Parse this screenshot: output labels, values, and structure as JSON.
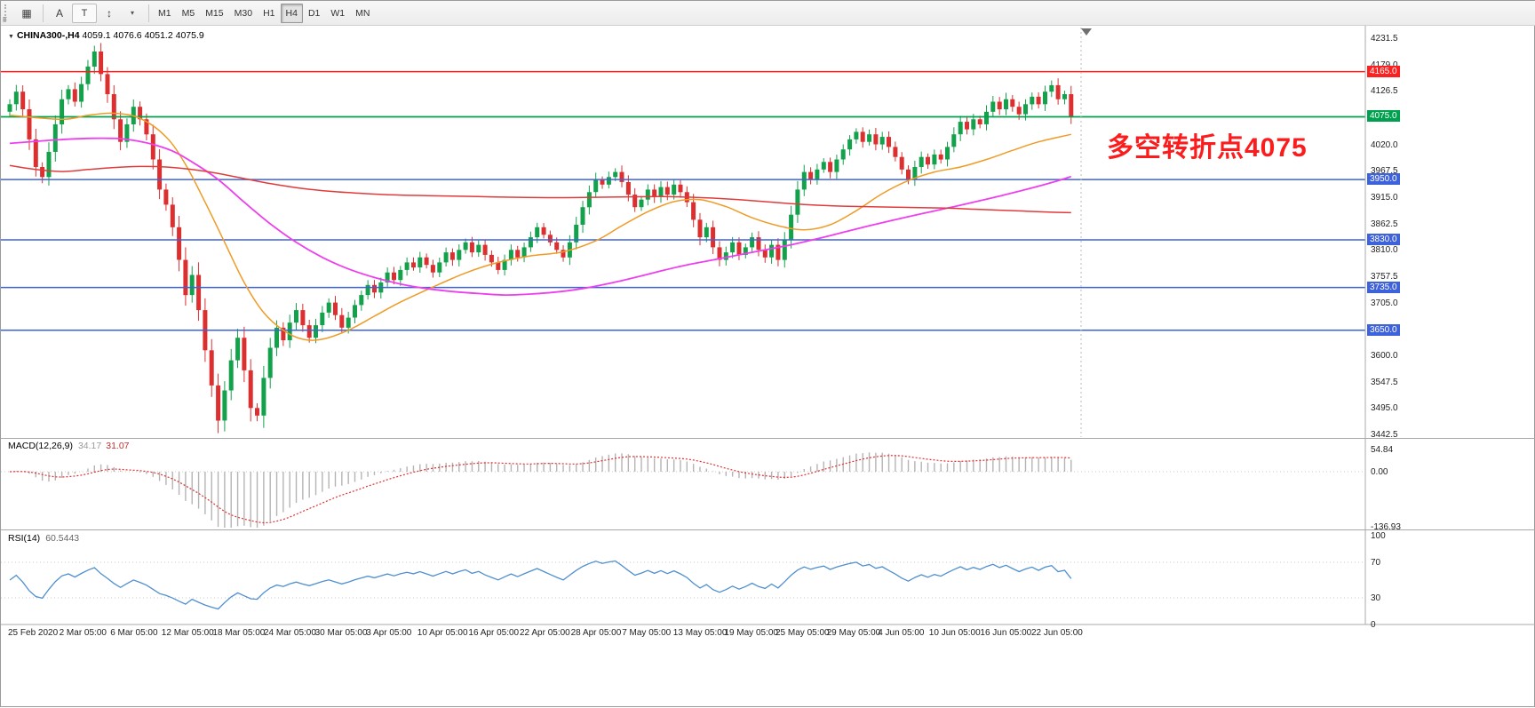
{
  "colors": {
    "up": "#14a14b",
    "down": "#dc2f2f",
    "ma_fast": "#ef9b25",
    "ma_mid": "#ee3fee",
    "ma_slow": "#e03b3b",
    "macd_hist": "#b4b4b4",
    "macd_signal": "#e03030",
    "rsi_line": "#4f8fd0",
    "annotation": "#fb1d1d"
  },
  "toolbar": {
    "f_label": "F",
    "caret": "▾",
    "icons": [
      {
        "name": "charts-grid",
        "glyph": "▦"
      },
      {
        "name": "cursor-a",
        "glyph": "A"
      },
      {
        "name": "text-tool",
        "glyph": "T"
      },
      {
        "name": "crosshair",
        "glyph": "↕"
      }
    ],
    "timeframes": [
      {
        "label": "M1",
        "active": false
      },
      {
        "label": "M5",
        "active": false
      },
      {
        "label": "M15",
        "active": false
      },
      {
        "label": "M30",
        "active": false
      },
      {
        "label": "H1",
        "active": false
      },
      {
        "label": "H4",
        "active": true
      },
      {
        "label": "D1",
        "active": false
      },
      {
        "label": "W1",
        "active": false
      },
      {
        "label": "MN",
        "active": false
      }
    ]
  },
  "chart": {
    "caret": "▼",
    "title": "CHINA300-,H4",
    "annotation": {
      "text": "多空转折点4075"
    }
  },
  "chart_data": {
    "type": "candlestick",
    "symbol": "CHINA300-",
    "period": "H4",
    "ohlc_current": {
      "open": "4059.1",
      "high": "4076.6",
      "low": "4051.2",
      "close": "4075.9"
    },
    "price_range": {
      "min": 3442.5,
      "max": 4231.5
    },
    "y_ticks": [
      4231.5,
      4179.0,
      4126.5,
      4020.0,
      3967.5,
      3915.0,
      3862.5,
      3810.0,
      3757.5,
      3705.0,
      3600.0,
      3547.5,
      3495.0,
      3442.5
    ],
    "levels": [
      {
        "price": 4165.0,
        "color": "#fd2020",
        "kind": "resistance-line"
      },
      {
        "price": 4075.0,
        "color": "#00a14e",
        "kind": "pivot-line"
      },
      {
        "price": 3950.0,
        "color": "#3e62d9",
        "kind": "support-line"
      },
      {
        "price": 3830.0,
        "color": "#3e62d9",
        "kind": "support-line"
      },
      {
        "price": 3735.0,
        "color": "#3e62d9",
        "kind": "support-line"
      },
      {
        "price": 3650.0,
        "color": "#3e62d9",
        "kind": "support-line"
      }
    ],
    "x_labels": [
      "25 Feb 2020",
      "2 Mar 05:00",
      "6 Mar 05:00",
      "12 Mar 05:00",
      "18 Mar 05:00",
      "24 Mar 05:00",
      "30 Mar 05:00",
      "3 Apr 05:00",
      "10 Apr 05:00",
      "16 Apr 05:00",
      "22 Apr 05:00",
      "28 Apr 05:00",
      "7 May 05:00",
      "13 May 05:00",
      "19 May 05:00",
      "25 May 05:00",
      "29 May 05:00",
      "4 Jun 05:00",
      "10 Jun 05:00",
      "16 Jun 05:00",
      "22 Jun 05:00"
    ],
    "first_open": 4085,
    "closes": [
      4100,
      4125,
      4090,
      4030,
      3975,
      3955,
      4005,
      4060,
      4110,
      4130,
      4105,
      4140,
      4175,
      4205,
      4160,
      4120,
      4070,
      4025,
      4060,
      4095,
      4070,
      4040,
      3990,
      3930,
      3900,
      3855,
      3790,
      3720,
      3760,
      3690,
      3610,
      3540,
      3470,
      3530,
      3590,
      3635,
      3570,
      3495,
      3480,
      3555,
      3615,
      3655,
      3630,
      3665,
      3690,
      3660,
      3635,
      3660,
      3685,
      3705,
      3680,
      3655,
      3675,
      3700,
      3720,
      3740,
      3725,
      3745,
      3765,
      3750,
      3770,
      3785,
      3775,
      3795,
      3780,
      3765,
      3785,
      3805,
      3790,
      3810,
      3825,
      3805,
      3820,
      3800,
      3785,
      3770,
      3790,
      3810,
      3795,
      3815,
      3835,
      3855,
      3840,
      3825,
      3810,
      3795,
      3825,
      3860,
      3895,
      3925,
      3950,
      3940,
      3955,
      3965,
      3945,
      3920,
      3895,
      3910,
      3930,
      3915,
      3935,
      3920,
      3940,
      3925,
      3905,
      3870,
      3835,
      3855,
      3815,
      3790,
      3805,
      3825,
      3800,
      3815,
      3835,
      3810,
      3795,
      3820,
      3790,
      3830,
      3880,
      3930,
      3965,
      3950,
      3970,
      3985,
      3965,
      3990,
      4010,
      4030,
      4045,
      4025,
      4040,
      4020,
      4035,
      4015,
      3995,
      3970,
      3950,
      3975,
      3995,
      3980,
      4000,
      3990,
      4015,
      4040,
      4065,
      4050,
      4070,
      4060,
      4085,
      4105,
      4090,
      4110,
      4095,
      4080,
      4100,
      4115,
      4100,
      4125,
      4138,
      4110,
      4120,
      4076
    ],
    "moving_averages": [
      {
        "name": "ma-fast",
        "color": "#ef9b25",
        "points": [
          [
            0,
            4078
          ],
          [
            8,
            4070
          ],
          [
            12,
            4078
          ],
          [
            16,
            4082
          ],
          [
            20,
            4072
          ],
          [
            24,
            4035
          ],
          [
            27,
            3980
          ],
          [
            30,
            3905
          ],
          [
            33,
            3825
          ],
          [
            36,
            3745
          ],
          [
            39,
            3685
          ],
          [
            42,
            3650
          ],
          [
            45,
            3632
          ],
          [
            48,
            3632
          ],
          [
            52,
            3650
          ],
          [
            56,
            3678
          ],
          [
            60,
            3706
          ],
          [
            65,
            3736
          ],
          [
            70,
            3764
          ],
          [
            75,
            3785
          ],
          [
            80,
            3798
          ],
          [
            85,
            3806
          ],
          [
            90,
            3828
          ],
          [
            94,
            3858
          ],
          [
            98,
            3886
          ],
          [
            102,
            3906
          ],
          [
            106,
            3910
          ],
          [
            110,
            3896
          ],
          [
            114,
            3874
          ],
          [
            118,
            3858
          ],
          [
            122,
            3850
          ],
          [
            126,
            3860
          ],
          [
            130,
            3888
          ],
          [
            134,
            3922
          ],
          [
            138,
            3948
          ],
          [
            142,
            3965
          ],
          [
            146,
            3975
          ],
          [
            150,
            3990
          ],
          [
            154,
            4008
          ],
          [
            158,
            4025
          ],
          [
            163,
            4040
          ]
        ]
      },
      {
        "name": "ma-mid",
        "color": "#ee3fee",
        "points": [
          [
            0,
            4022
          ],
          [
            6,
            4028
          ],
          [
            12,
            4032
          ],
          [
            18,
            4030
          ],
          [
            24,
            4012
          ],
          [
            28,
            3985
          ],
          [
            32,
            3950
          ],
          [
            36,
            3905
          ],
          [
            40,
            3862
          ],
          [
            44,
            3825
          ],
          [
            48,
            3795
          ],
          [
            52,
            3772
          ],
          [
            56,
            3755
          ],
          [
            60,
            3742
          ],
          [
            64,
            3733
          ],
          [
            68,
            3727
          ],
          [
            72,
            3723
          ],
          [
            76,
            3720
          ],
          [
            80,
            3722
          ],
          [
            84,
            3726
          ],
          [
            88,
            3733
          ],
          [
            92,
            3743
          ],
          [
            96,
            3755
          ],
          [
            100,
            3768
          ],
          [
            104,
            3780
          ],
          [
            108,
            3790
          ],
          [
            112,
            3800
          ],
          [
            116,
            3810
          ],
          [
            120,
            3820
          ],
          [
            124,
            3832
          ],
          [
            128,
            3845
          ],
          [
            132,
            3858
          ],
          [
            136,
            3870
          ],
          [
            140,
            3882
          ],
          [
            144,
            3893
          ],
          [
            148,
            3905
          ],
          [
            152,
            3917
          ],
          [
            156,
            3930
          ],
          [
            160,
            3944
          ],
          [
            163,
            3956
          ]
        ]
      },
      {
        "name": "ma-slow",
        "color": "#e03b3b",
        "points": [
          [
            0,
            3978
          ],
          [
            4,
            3970
          ],
          [
            8,
            3966
          ],
          [
            12,
            3970
          ],
          [
            16,
            3974
          ],
          [
            20,
            3976
          ],
          [
            24,
            3975
          ],
          [
            28,
            3970
          ],
          [
            32,
            3962
          ],
          [
            36,
            3952
          ],
          [
            40,
            3942
          ],
          [
            44,
            3934
          ],
          [
            48,
            3928
          ],
          [
            52,
            3924
          ],
          [
            56,
            3921
          ],
          [
            60,
            3919
          ],
          [
            64,
            3918
          ],
          [
            68,
            3917
          ],
          [
            72,
            3916
          ],
          [
            76,
            3915
          ],
          [
            84,
            3914
          ],
          [
            92,
            3915
          ],
          [
            100,
            3916
          ],
          [
            104,
            3915
          ],
          [
            108,
            3913
          ],
          [
            112,
            3910
          ],
          [
            116,
            3906
          ],
          [
            120,
            3902
          ],
          [
            124,
            3899
          ],
          [
            128,
            3897
          ],
          [
            136,
            3895
          ],
          [
            144,
            3893
          ],
          [
            148,
            3891
          ],
          [
            152,
            3889
          ],
          [
            156,
            3887
          ],
          [
            160,
            3885
          ],
          [
            163,
            3884
          ]
        ]
      }
    ],
    "indicators": {
      "macd": {
        "label": "MACD(12,26,9)",
        "value_main": "34.17",
        "value_signal": "31.07",
        "axis": [
          54.84,
          0,
          -136.93
        ],
        "params": [
          12,
          26,
          9
        ]
      },
      "rsi": {
        "label": "RSI(14)",
        "value": "60.5443",
        "axis": [
          100,
          70,
          30,
          0
        ],
        "period": 14,
        "guide_levels": [
          70,
          30
        ]
      }
    }
  }
}
